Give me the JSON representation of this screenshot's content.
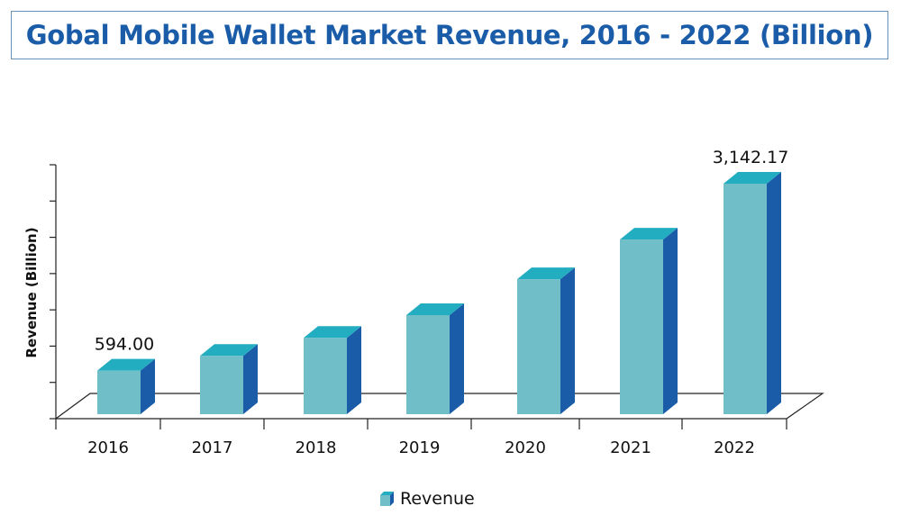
{
  "chart_data": {
    "type": "bar",
    "title": "Gobal Mobile Wallet Market Revenue, 2016 - 2022 (Billion)",
    "ylabel": "Revenue (Billion)",
    "xlabel": "",
    "categories": [
      "2016",
      "2017",
      "2018",
      "2019",
      "2020",
      "2021",
      "2022"
    ],
    "series": [
      {
        "name": "Revenue",
        "values": [
          594.0,
          795,
          1040,
          1350,
          1840,
          2380,
          3142.17
        ]
      }
    ],
    "data_labels": {
      "2016": "594.00",
      "2022": "3,142.17"
    },
    "ylim": [
      0,
      3500
    ],
    "grid": false,
    "legend_position": "bottom",
    "colors": {
      "front": "#6fbec8",
      "top": "#22adc0",
      "side": "#1a5ca8",
      "title": "#1a5ca8"
    }
  }
}
